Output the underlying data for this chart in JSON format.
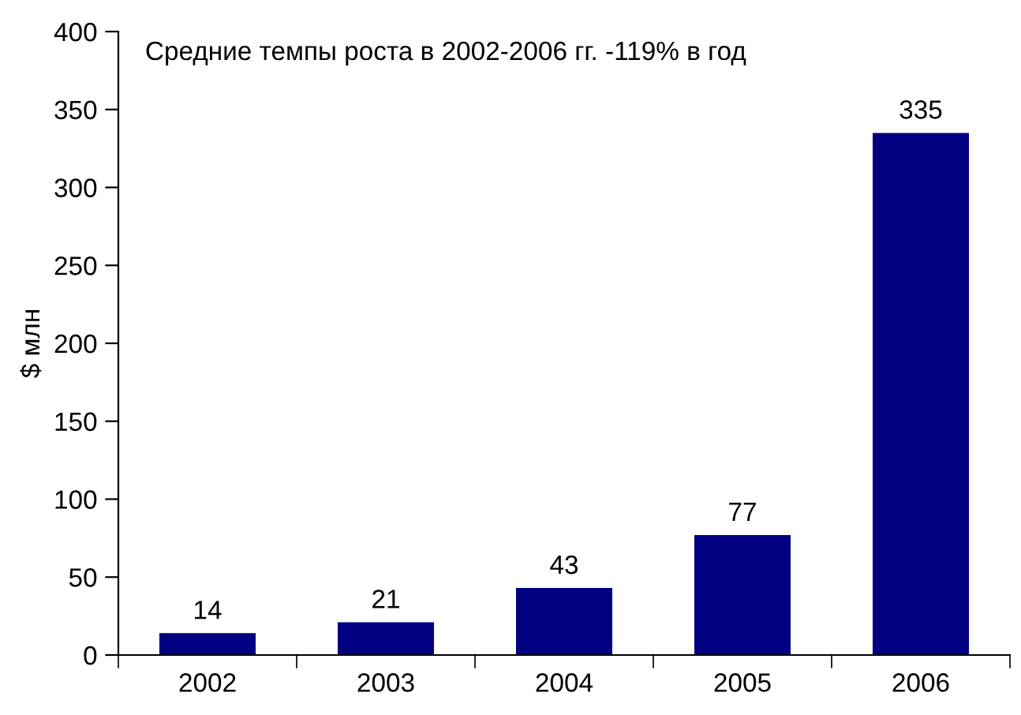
{
  "chart_data": {
    "type": "bar",
    "ylabel": "$ млн",
    "annotations": [
      "Средние темпы роста в 2002-2006 гг. -119% в год"
    ],
    "categories": [
      "2002",
      "2003",
      "2004",
      "2005",
      "2006"
    ],
    "values": [
      14,
      21,
      43,
      77,
      335
    ],
    "color": "#000080",
    "ylim": [
      0,
      400
    ],
    "yticks": [
      0,
      50,
      100,
      150,
      200,
      250,
      300,
      350,
      400
    ],
    "grid": false,
    "data_labels": true
  }
}
